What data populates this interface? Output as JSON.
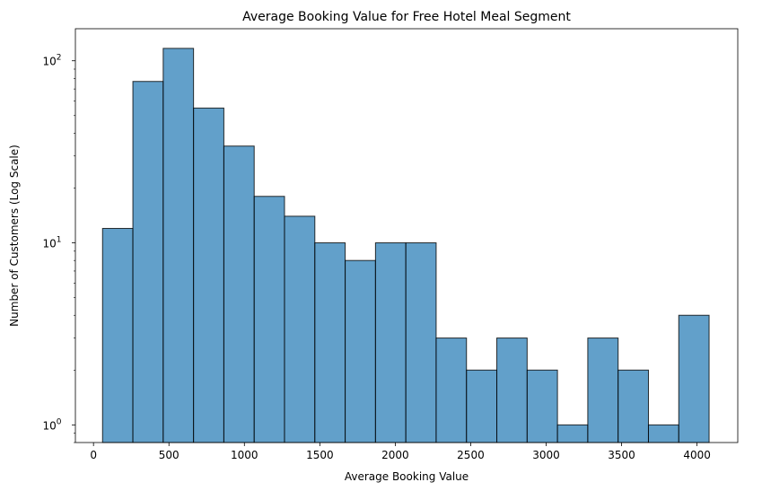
{
  "chart_data": {
    "type": "bar",
    "title": "Average Booking Value for Free Hotel Meal Segment",
    "xlabel": "Average Booking Value",
    "ylabel": "Number of Customers (Log Scale)",
    "yscale": "log",
    "xlim": [
      -120,
      4270
    ],
    "ylim": [
      0.8,
      150
    ],
    "bin_edges": [
      60,
      261,
      462,
      663,
      864,
      1065,
      1266,
      1467,
      1668,
      1869,
      2070,
      2271,
      2472,
      2673,
      2874,
      3075,
      3276,
      3477,
      3678,
      3879,
      4080
    ],
    "values": [
      12,
      77,
      117,
      55,
      34,
      18,
      14,
      10,
      8,
      10,
      10,
      3,
      2,
      3,
      2,
      1,
      3,
      2,
      1,
      4
    ],
    "x_ticks": [
      0,
      500,
      1000,
      1500,
      2000,
      2500,
      3000,
      3500,
      4000
    ],
    "x_tick_labels": [
      "0",
      "500",
      "1000",
      "1500",
      "2000",
      "2500",
      "3000",
      "3500",
      "4000"
    ],
    "y_ticks": [
      1,
      10,
      100
    ],
    "grid": false,
    "colors": {
      "bar_fill": "#1f77b4",
      "bar_fill_opacity": 0.7,
      "bar_edge": "#000000"
    }
  }
}
